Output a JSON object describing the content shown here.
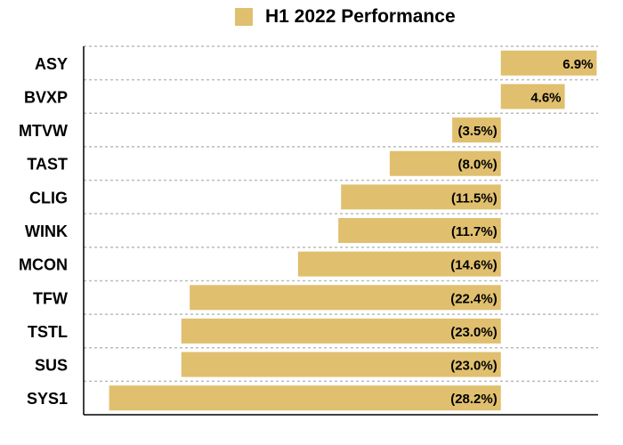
{
  "chart_data": {
    "type": "bar",
    "orientation": "horizontal",
    "title": "",
    "xlabel": "",
    "ylabel": "",
    "legend": {
      "position": "top",
      "entries": [
        "H1 2022 Performance"
      ]
    },
    "series": [
      {
        "name": "H1 2022 Performance",
        "color": "#E0BF6E",
        "values": [
          6.9,
          4.6,
          -3.5,
          -8.0,
          -11.5,
          -11.7,
          -14.6,
          -22.4,
          -23.0,
          -23.0,
          -28.2
        ],
        "labels": [
          "6.9%",
          "4.6%",
          "(3.5%)",
          "(8.0%)",
          "(11.5%)",
          "(11.7%)",
          "(14.6%)",
          "(22.4%)",
          "(23.0%)",
          "(23.0%)",
          "(28.2%)"
        ]
      }
    ],
    "categories": [
      "ASY",
      "BVXP",
      "MTVW",
      "TAST",
      "CLIG",
      "WINK",
      "MCON",
      "TFW",
      "TSTL",
      "SUS",
      "SYS1"
    ],
    "xlim": [
      -29.2,
      7.0
    ],
    "grid": {
      "horizontal": true,
      "style": "dashed",
      "color": "#bbbbbb"
    },
    "axis_color": "#000000"
  }
}
